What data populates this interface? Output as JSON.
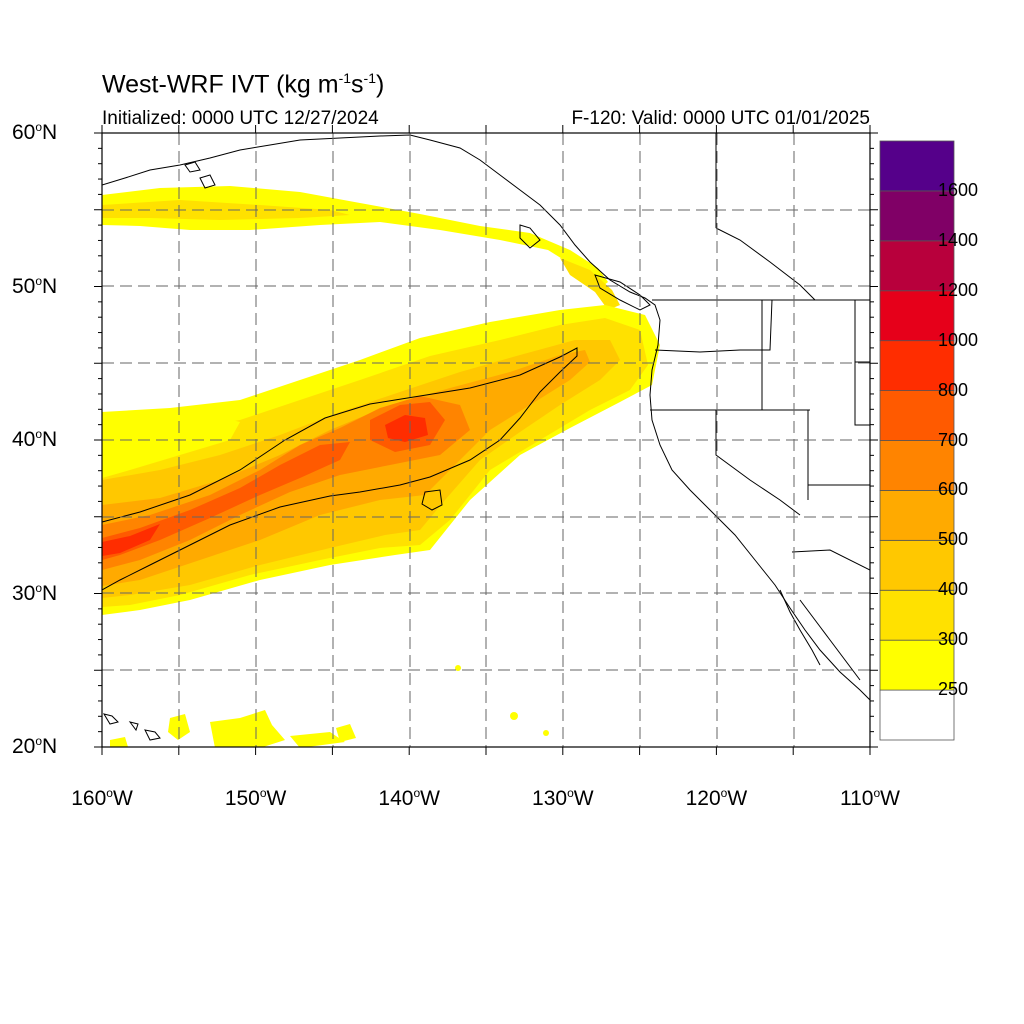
{
  "title": {
    "main": "West-WRF IVT (kg m",
    "exp1": "-1",
    "mid": "s",
    "exp2": "-1",
    "end": ")"
  },
  "subtitle": {
    "initialized": "Initialized: 0000 UTC 12/27/2024",
    "valid": "F-120: Valid: 0000 UTC 01/01/2025"
  },
  "axes": {
    "lat_labels": [
      {
        "deg": "60",
        "hemi": "N",
        "value": 60
      },
      {
        "deg": "50",
        "hemi": "N",
        "value": 50
      },
      {
        "deg": "40",
        "hemi": "N",
        "value": 40
      },
      {
        "deg": "30",
        "hemi": "N",
        "value": 30
      },
      {
        "deg": "20",
        "hemi": "N",
        "value": 20
      }
    ],
    "lon_labels": [
      {
        "deg": "160",
        "hemi": "W",
        "value": -160
      },
      {
        "deg": "150",
        "hemi": "W",
        "value": -150
      },
      {
        "deg": "140",
        "hemi": "W",
        "value": -140
      },
      {
        "deg": "130",
        "hemi": "W",
        "value": -130
      },
      {
        "deg": "120",
        "hemi": "W",
        "value": -120
      },
      {
        "deg": "110",
        "hemi": "W",
        "value": -110
      }
    ],
    "lat_range": [
      20,
      60
    ],
    "lon_range": [
      -160,
      -110
    ],
    "gridlines": "dashed, every 5 degrees"
  },
  "colorbar": {
    "labels": [
      "250",
      "300",
      "400",
      "500",
      "600",
      "700",
      "800",
      "1000",
      "1200",
      "1400",
      "1600"
    ],
    "bins": [
      {
        "color": "#ffffff"
      },
      {
        "color": "#ffff00"
      },
      {
        "color": "#ffe100"
      },
      {
        "color": "#ffc800"
      },
      {
        "color": "#ffaa00"
      },
      {
        "color": "#ff8400"
      },
      {
        "color": "#ff5a00"
      },
      {
        "color": "#ff2d00"
      },
      {
        "color": "#e6001a"
      },
      {
        "color": "#b8003c"
      },
      {
        "color": "#800066"
      },
      {
        "color": "#55008a"
      }
    ]
  },
  "colors": {
    "ivt_250": "#ffff00",
    "ivt_300": "#ffe100",
    "ivt_400": "#ffc800",
    "ivt_500": "#ffaa00",
    "ivt_600": "#ff8400",
    "ivt_700": "#ff5a00",
    "ivt_800": "#ff2d00"
  }
}
